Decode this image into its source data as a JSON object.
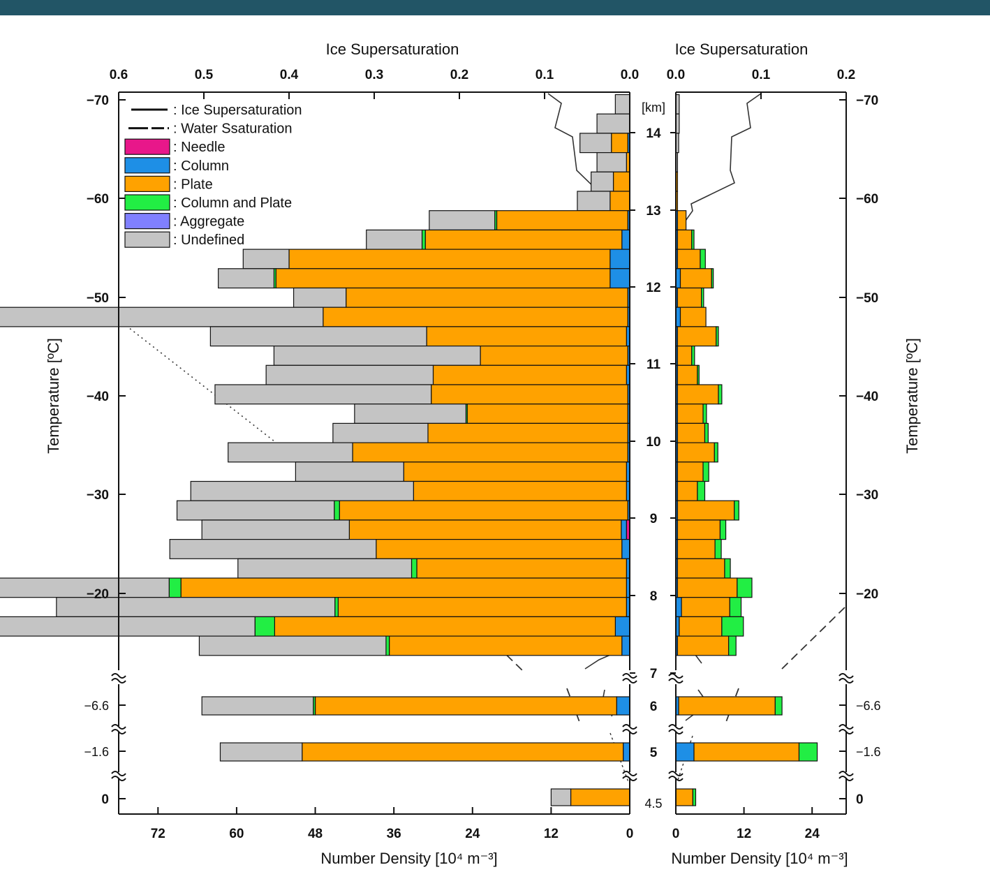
{
  "colors": {
    "header_bar": "#225566",
    "Needle": "#e8178a",
    "Column": "#1e8fe6",
    "Plate": "#ffa200",
    "Column and Plate": "#22ee44",
    "Aggregate": "#8080ff",
    "Undefined": "#c4c4c4"
  },
  "chart_data": [
    {
      "type": "bar",
      "orientation": "horizontal-stacked",
      "panel": "left",
      "title": "",
      "xlabel_top": "Ice Supersaturation",
      "xlabel_bottom": "Number Density [10⁴ m⁻³]",
      "ylabel": "Temperature [ºC]",
      "top_ticks": [
        "0.6",
        "0.5",
        "0.4",
        "0.3",
        "0.2",
        "0.1",
        "0.0"
      ],
      "bottom_ticks": [
        "72",
        "60",
        "48",
        "36",
        "24",
        "12",
        "0"
      ],
      "left_ticks": [
        "−70",
        "−60",
        "−50",
        "−40",
        "−30",
        "−20",
        "−6.6",
        "−1.6",
        "0"
      ],
      "center_axis_label": "[km]",
      "center_ticks": [
        "14",
        "13",
        "12",
        "11",
        "10",
        "9",
        "8",
        "7",
        "6",
        "5",
        "4.5"
      ],
      "xlim": [
        78,
        0
      ],
      "top_xlim": [
        0.6,
        0
      ],
      "legend": {
        "position": "top-left",
        "entries": [
          {
            "label": ": Ice Supersaturation",
            "symbol": "solid-line"
          },
          {
            "label": ": Water Ssaturation",
            "symbol": "dashed-line"
          },
          {
            "label": ": Needle",
            "symbol": "box"
          },
          {
            "label": ": Column",
            "symbol": "box"
          },
          {
            "label": ": Plate",
            "symbol": "box"
          },
          {
            "label": ": Column and Plate",
            "symbol": "box"
          },
          {
            "label": ": Aggregate",
            "symbol": "box"
          },
          {
            "label": ": Undefined",
            "symbol": "box"
          }
        ]
      },
      "series_order": [
        "Needle",
        "Column",
        "Plate",
        "Column and Plate",
        "Aggregate",
        "Undefined"
      ],
      "altitude_km": [
        14.2,
        13.95,
        13.7,
        13.45,
        13.2,
        12.95,
        12.7,
        12.45,
        12.2,
        11.95,
        11.7,
        11.45,
        11.2,
        10.95,
        10.7,
        10.45,
        10.2,
        9.95,
        9.7,
        9.45,
        9.2,
        8.95,
        8.7,
        8.45,
        8.2,
        7.95,
        7.7,
        7.45,
        7.2,
        6.0,
        5.0,
        4.5
      ],
      "bars": {
        "Needle": [
          0,
          0,
          0,
          0,
          0,
          0,
          0,
          0,
          0,
          0,
          0,
          0,
          0,
          0,
          0,
          0,
          0,
          0,
          0,
          0,
          0,
          0,
          0.5,
          0,
          0,
          0,
          0,
          0,
          0,
          0,
          0,
          0
        ],
        "Column": [
          0,
          0,
          0.3,
          0,
          0,
          0,
          0.3,
          1.2,
          3.0,
          3.0,
          0.3,
          0.3,
          0.5,
          0.3,
          0.5,
          0.3,
          0.3,
          0.3,
          0.3,
          0.5,
          0.5,
          0.3,
          0.8,
          1.2,
          0.5,
          0.5,
          0.5,
          2.2,
          1.2,
          2.0,
          1.0,
          0
        ],
        "Plate": [
          0,
          0,
          2.5,
          0.5,
          2.5,
          3.0,
          20.0,
          30.0,
          49.0,
          51.0,
          43.0,
          46.5,
          30.5,
          22.5,
          29.5,
          30.0,
          24.5,
          30.5,
          42.0,
          34.0,
          32.5,
          44.0,
          41.5,
          37.5,
          32.0,
          68.0,
          44.0,
          52.0,
          35.5,
          46.0,
          49.0,
          9.0
        ],
        "Column and Plate": [
          0,
          0,
          0,
          0,
          0,
          0,
          0.3,
          0.5,
          0,
          0.3,
          0,
          0,
          0,
          0,
          0,
          0,
          0.2,
          0,
          0,
          0,
          0,
          0.8,
          0,
          0,
          0.8,
          1.8,
          0.5,
          3.0,
          0.5,
          0.3,
          0,
          0
        ],
        "Aggregate": [
          0,
          0,
          0,
          0,
          0,
          0,
          0,
          0,
          0,
          0,
          0,
          0,
          0,
          0,
          0,
          0,
          0,
          0,
          0,
          0,
          0,
          0,
          0,
          0,
          0,
          0,
          0,
          0,
          0,
          0,
          0,
          0
        ],
        "Undefined": [
          2.2,
          5.0,
          4.8,
          4.5,
          3.4,
          5.0,
          10.0,
          8.5,
          7.0,
          8.5,
          8.0,
          56.0,
          33.0,
          31.5,
          25.5,
          33.0,
          17.0,
          14.5,
          19.0,
          16.5,
          34.0,
          24.0,
          22.5,
          31.5,
          26.5,
          34.0,
          42.5,
          40.0,
          28.5,
          17.0,
          12.5,
          3.0
        ]
      }
    },
    {
      "type": "bar",
      "orientation": "horizontal-stacked",
      "panel": "right",
      "title": "",
      "xlabel_top": "Ice Supersaturation",
      "xlabel_bottom": "Number Density [10⁴ m⁻³]",
      "ylabel": "Temperature [ºC]",
      "top_ticks": [
        "0.0",
        "0.1",
        "0.2"
      ],
      "bottom_ticks": [
        "0",
        "12",
        "24"
      ],
      "right_ticks": [
        "−70",
        "−60",
        "−50",
        "−40",
        "−30",
        "−20",
        "−6.6",
        "−1.6",
        "0"
      ],
      "xlim": [
        0,
        30
      ],
      "top_xlim": [
        0,
        0.2
      ],
      "altitude_km": [
        14.2,
        13.95,
        13.7,
        13.45,
        13.2,
        12.95,
        12.7,
        12.45,
        12.2,
        11.95,
        11.7,
        11.45,
        11.2,
        10.95,
        10.7,
        10.45,
        10.2,
        9.95,
        9.7,
        9.45,
        9.2,
        8.95,
        8.7,
        8.45,
        8.2,
        7.95,
        7.7,
        7.45,
        7.2,
        6.0,
        5.0,
        4.5
      ],
      "bars": {
        "Needle": [
          0,
          0,
          0,
          0,
          0,
          0,
          0,
          0,
          0,
          0,
          0,
          0,
          0,
          0,
          0,
          0,
          0,
          0,
          0,
          0,
          0,
          0,
          0,
          0,
          0,
          0,
          0,
          0,
          0,
          0,
          0,
          0
        ],
        "Column": [
          0,
          0,
          0,
          0,
          0,
          0,
          0.3,
          0.3,
          0.3,
          0.8,
          0.3,
          0.8,
          0.3,
          0.3,
          0.3,
          0.3,
          0.3,
          0.3,
          0.3,
          0.3,
          0.3,
          0.3,
          0.3,
          0.3,
          0.3,
          0.3,
          1.0,
          0.6,
          0.3,
          0.5,
          3.2,
          0
        ],
        "Plate": [
          0,
          0,
          0,
          0,
          0.3,
          0.3,
          1.5,
          2.5,
          4.0,
          5.5,
          4.2,
          4.5,
          6.8,
          2.5,
          3.5,
          7.2,
          4.5,
          4.8,
          6.5,
          4.5,
          3.5,
          10.0,
          7.5,
          6.6,
          8.3,
          10.5,
          8.5,
          7.5,
          9.0,
          17.0,
          18.5,
          3.0
        ],
        "Column and Plate": [
          0,
          0,
          0,
          0,
          0,
          0,
          0,
          0.4,
          0.9,
          0.3,
          0.4,
          0,
          0.4,
          0.5,
          0.3,
          0.6,
          0.6,
          0.6,
          0.6,
          1.0,
          1.3,
          0.8,
          1.0,
          1.1,
          1.0,
          2.6,
          2.0,
          3.8,
          1.3,
          1.2,
          3.2,
          0.5
        ],
        "Aggregate": [
          0,
          0,
          0,
          0,
          0,
          0,
          0,
          0,
          0,
          0,
          0,
          0,
          0,
          0,
          0,
          0,
          0,
          0,
          0,
          0,
          0,
          0,
          0,
          0,
          0,
          0,
          0,
          0,
          0,
          0,
          0,
          0
        ],
        "Undefined": [
          0.6,
          0.6,
          0.5,
          0.3,
          0,
          0,
          0,
          0,
          0,
          0,
          0,
          0,
          0,
          0,
          0,
          0,
          0,
          0,
          0,
          0,
          0,
          0,
          0,
          0,
          0,
          0,
          0,
          0,
          0,
          0,
          0,
          0
        ]
      }
    }
  ]
}
